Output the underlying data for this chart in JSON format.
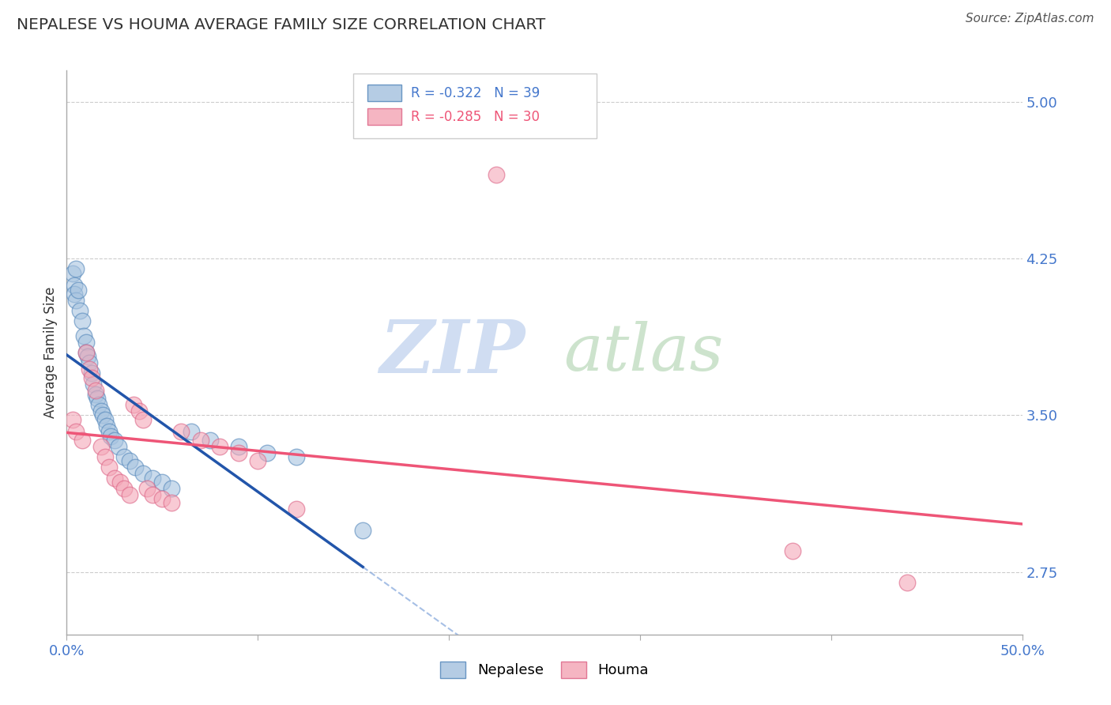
{
  "title": "NEPALESE VS HOUMA AVERAGE FAMILY SIZE CORRELATION CHART",
  "source": "Source: ZipAtlas.com",
  "ylabel": "Average Family Size",
  "xlim": [
    0.0,
    0.5
  ],
  "ylim": [
    2.45,
    5.15
  ],
  "yticks": [
    2.75,
    3.5,
    4.25,
    5.0
  ],
  "xticks": [
    0.0,
    0.1,
    0.2,
    0.3,
    0.4,
    0.5
  ],
  "xtick_labels": [
    "0.0%",
    "",
    "",
    "",
    "",
    "50.0%"
  ],
  "blue_R": -0.322,
  "blue_N": 39,
  "pink_R": -0.285,
  "pink_N": 30,
  "blue_color": "#A8C4E0",
  "pink_color": "#F4A8B8",
  "blue_edge": "#5588BB",
  "pink_edge": "#DD6688",
  "blue_line_color": "#2255AA",
  "blue_dash_color": "#88AADD",
  "pink_line_color": "#EE5577",
  "nepalese_x": [
    0.003,
    0.004,
    0.004,
    0.005,
    0.005,
    0.006,
    0.007,
    0.008,
    0.009,
    0.01,
    0.01,
    0.011,
    0.012,
    0.013,
    0.014,
    0.015,
    0.016,
    0.017,
    0.018,
    0.019,
    0.02,
    0.021,
    0.022,
    0.023,
    0.025,
    0.027,
    0.03,
    0.033,
    0.036,
    0.04,
    0.045,
    0.05,
    0.055,
    0.065,
    0.075,
    0.09,
    0.105,
    0.12,
    0.155
  ],
  "nepalese_y": [
    4.18,
    4.12,
    4.08,
    4.2,
    4.05,
    4.1,
    4.0,
    3.95,
    3.88,
    3.85,
    3.8,
    3.78,
    3.75,
    3.7,
    3.65,
    3.6,
    3.58,
    3.55,
    3.52,
    3.5,
    3.48,
    3.45,
    3.42,
    3.4,
    3.38,
    3.35,
    3.3,
    3.28,
    3.25,
    3.22,
    3.2,
    3.18,
    3.15,
    3.42,
    3.38,
    3.35,
    3.32,
    3.3,
    2.95
  ],
  "houma_x": [
    0.003,
    0.005,
    0.008,
    0.01,
    0.012,
    0.013,
    0.015,
    0.018,
    0.02,
    0.022,
    0.025,
    0.028,
    0.03,
    0.033,
    0.035,
    0.038,
    0.04,
    0.042,
    0.045,
    0.05,
    0.055,
    0.06,
    0.07,
    0.08,
    0.09,
    0.1,
    0.12,
    0.225,
    0.38,
    0.44
  ],
  "houma_y": [
    3.48,
    3.42,
    3.38,
    3.8,
    3.72,
    3.68,
    3.62,
    3.35,
    3.3,
    3.25,
    3.2,
    3.18,
    3.15,
    3.12,
    3.55,
    3.52,
    3.48,
    3.15,
    3.12,
    3.1,
    3.08,
    3.42,
    3.38,
    3.35,
    3.32,
    3.28,
    3.05,
    4.65,
    2.85,
    2.7
  ],
  "background_color": "#FFFFFF",
  "grid_color": "#CCCCCC",
  "watermark_zip_color": "#C8D8F0",
  "watermark_atlas_color": "#D0E4D0"
}
